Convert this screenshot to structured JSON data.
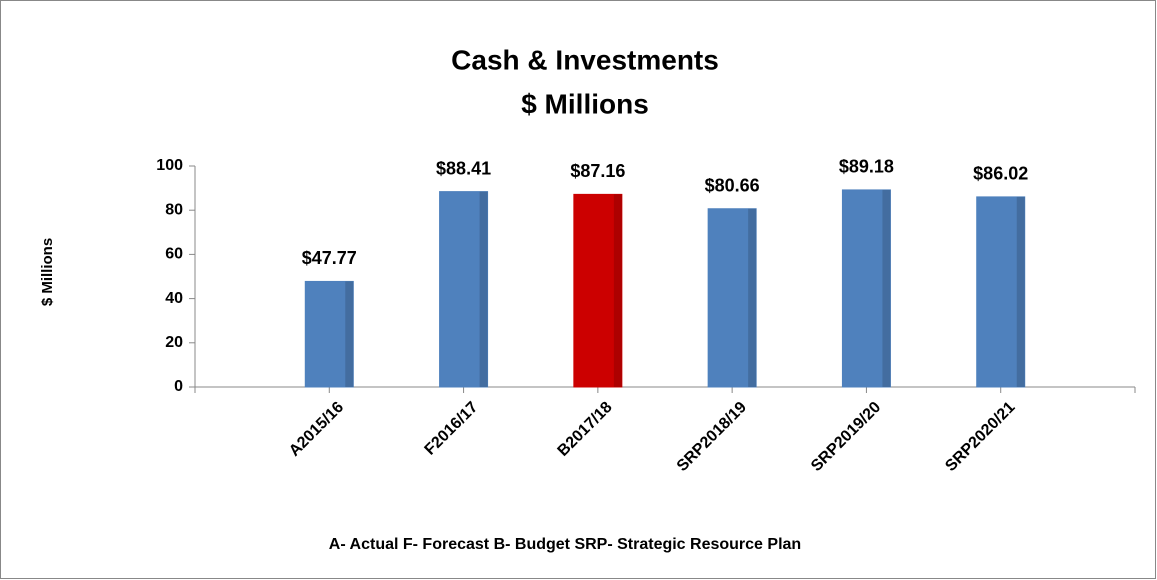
{
  "chart_data": {
    "type": "bar",
    "title": "Cash & Investments",
    "subtitle": "$ Millions",
    "y_label": "$ Millions",
    "annotation": "A- Actual  F- Forecast  B- Budget  SRP- Strategic Resource Plan",
    "categories": [
      "A2015/16",
      "F2016/17",
      "B2017/18",
      "SRP2018/19",
      "SRP2019/20",
      "SRP2020/21"
    ],
    "values": [
      47.77,
      88.41,
      87.16,
      80.66,
      89.18,
      86.02
    ],
    "value_labels": [
      "$47.77",
      "$88.41",
      "$87.16",
      "$80.66",
      "$89.18",
      "$86.02"
    ],
    "colors": [
      "#4f81bd",
      "#4f81bd",
      "#cc0000",
      "#4f81bd",
      "#4f81bd",
      "#4f81bd"
    ],
    "ylim": [
      0,
      100
    ],
    "yticks": [
      0,
      20,
      40,
      60,
      80,
      100
    ],
    "grid": false
  }
}
